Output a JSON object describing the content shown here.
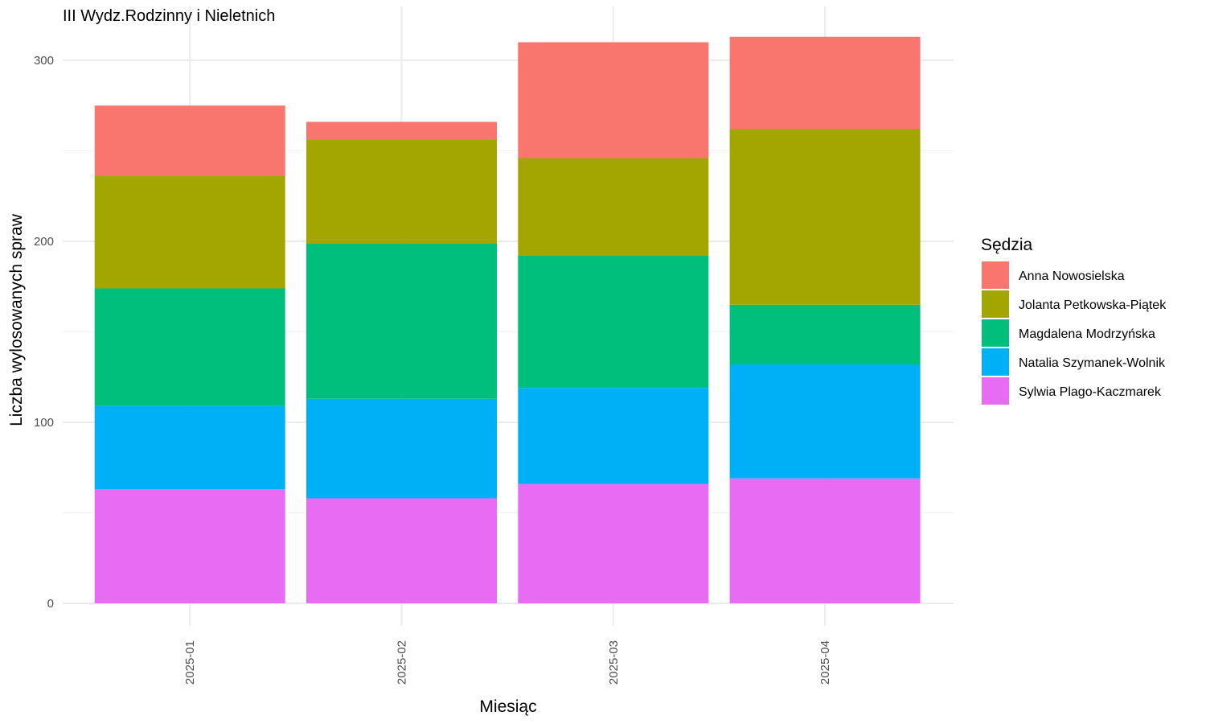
{
  "chart_data": {
    "type": "bar",
    "stacked": true,
    "title": "III Wydz.Rodzinny i Nieletnich",
    "xlabel": "Miesiąc",
    "ylabel": "Liczba wylosowanych spraw",
    "ylim": [
      0,
      320
    ],
    "yticks": [
      0,
      100,
      200,
      300
    ],
    "grid": true,
    "legend_title": "Sędzia",
    "legend_position": "right",
    "categories": [
      "2025-01",
      "2025-02",
      "2025-03",
      "2025-04"
    ],
    "series": [
      {
        "name": "Sylwia Plago-Kaczmarek",
        "color": "#E76BF3",
        "values": [
          63,
          58,
          66,
          69
        ]
      },
      {
        "name": "Natalia Szymanek-Wolnik",
        "color": "#00B0F6",
        "values": [
          46,
          55,
          53,
          63
        ]
      },
      {
        "name": "Magdalena Modrzyńska",
        "color": "#00BF7D",
        "values": [
          65,
          86,
          73,
          33
        ]
      },
      {
        "name": "Jolanta Petkowska-Piątek",
        "color": "#A3A500",
        "values": [
          62,
          57,
          54,
          97
        ]
      },
      {
        "name": "Anna Nowosielska",
        "color": "#F8766D",
        "values": [
          39,
          10,
          64,
          51
        ]
      }
    ],
    "legend_order": [
      "Anna Nowosielska",
      "Jolanta Petkowska-Piątek",
      "Magdalena Modrzyńska",
      "Natalia Szymanek-Wolnik",
      "Sylwia Plago-Kaczmarek"
    ]
  }
}
